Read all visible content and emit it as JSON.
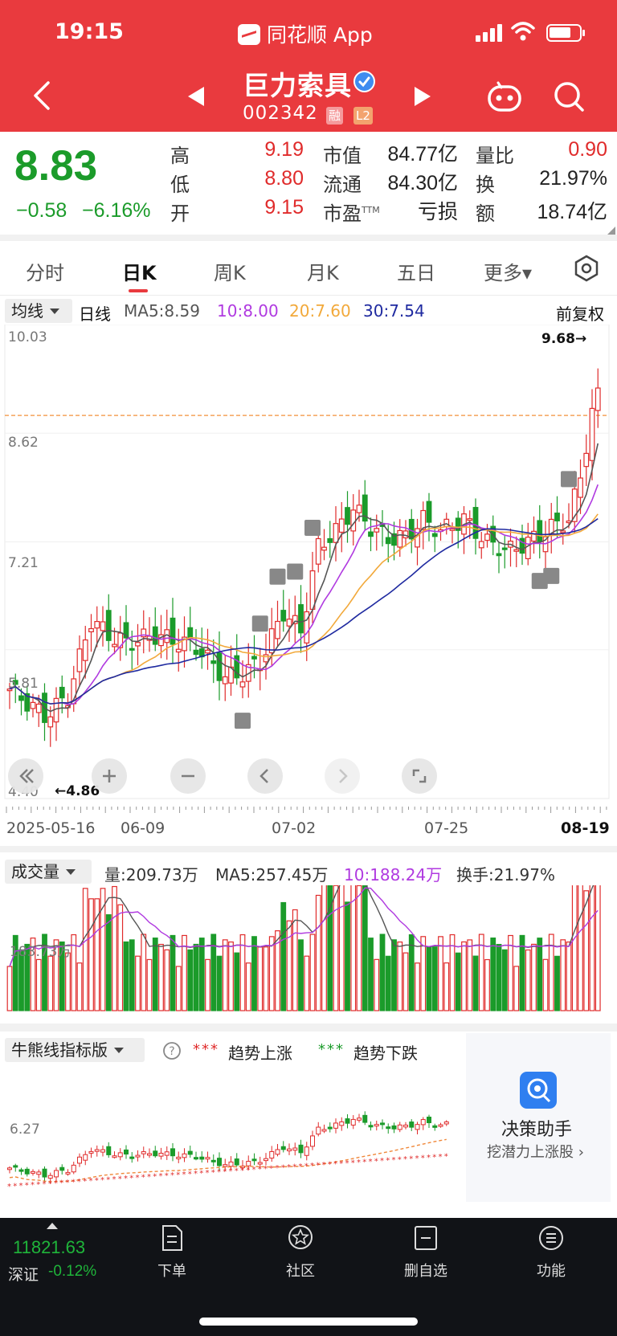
{
  "status_bar": {
    "time": "19:15",
    "app_name": "同花顺 App"
  },
  "header": {
    "stock_name": "巨力索具",
    "stock_code": "002342",
    "tags": [
      "融",
      "L2"
    ],
    "icons": [
      "back-icon",
      "prev-stock-icon",
      "next-stock-icon",
      "robot-icon",
      "search-icon",
      "verified-icon"
    ]
  },
  "quote": {
    "price": "8.83",
    "change": "−0.58",
    "change_pct": "−6.16%",
    "rows": [
      {
        "l1": "高",
        "v1": "9.19",
        "l2": "市值",
        "v2": "84.77亿",
        "l3": "量比",
        "v3": "0.90"
      },
      {
        "l1": "低",
        "v1": "8.80",
        "l2": "流通",
        "v2": "84.30亿",
        "l3": "换",
        "v3": "21.97%"
      },
      {
        "l1": "开",
        "v1": "9.15",
        "l2": "市盈",
        "v2": "亏损",
        "l3": "额",
        "v3": "18.74亿"
      }
    ],
    "ttm": "TTM"
  },
  "tabs": [
    "分时",
    "日K",
    "周K",
    "月K",
    "五日",
    "更多▾"
  ],
  "active_tab": "日K",
  "kline": {
    "indicator": "均线",
    "period": "日线",
    "ma5": "MA5:8.59",
    "ma10": "10:8.00",
    "ma20": "20:7.60",
    "ma30": "30:7.54",
    "adjust": "前复权",
    "y_labels": [
      "10.03",
      "8.62",
      "7.21",
      "5.81",
      "4.40"
    ],
    "max_label": "9.68→",
    "min_label": "←4.86",
    "dates": [
      "2025-05-16",
      "06-09",
      "07-02",
      "07-25",
      "08-19"
    ]
  },
  "volume": {
    "indicator": "成交量",
    "vol": "量:209.73万",
    "ma5": "MA5:257.45万",
    "ma10": "10:188.24万",
    "turnover": "换手:21.97%",
    "y_label": "183.73万"
  },
  "bull_bear": {
    "indicator": "牛熊线指标版",
    "up": "趋势上涨",
    "down": "趋势下跌",
    "y_label": "6.27"
  },
  "helper": {
    "title": "决策助手",
    "subtitle": "挖潜力上涨股 ›"
  },
  "bottom_nav": {
    "index_value": "11821.63",
    "index_name": "深证",
    "index_change": "-0.12%",
    "items": [
      "下单",
      "社区",
      "删自选",
      "功能"
    ]
  },
  "colors": {
    "up": "#e02b2b",
    "down": "#1b9b2a",
    "brand": "#e93a3e",
    "ma5": "#555555",
    "ma10": "#b03ae0",
    "ma20": "#f2a93b",
    "ma30": "#1f2aa0"
  }
}
